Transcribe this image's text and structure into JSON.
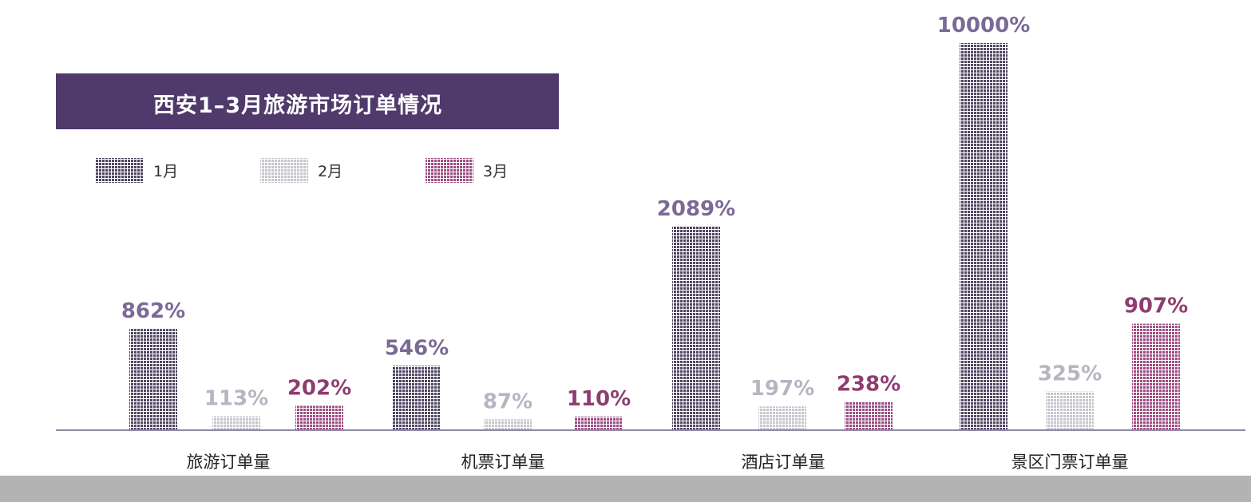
{
  "chart_data": {
    "type": "bar",
    "title": "西安1–3月旅游市场订单情况",
    "categories": [
      "旅游订单量",
      "机票订单量",
      "酒店订单量",
      "景区门票订单量"
    ],
    "series": [
      {
        "name": "1月",
        "color": "#4f4662",
        "label_color": "#7a6a96",
        "values": [
          862,
          546,
          2089,
          10000
        ],
        "labels": [
          "862%",
          "546%",
          "2089%",
          "10000%"
        ]
      },
      {
        "name": "2月",
        "color": "#c7c3cc",
        "label_color": "#b9b4c2",
        "values": [
          113,
          87,
          197,
          325
        ],
        "labels": [
          "113%",
          "87%",
          "197%",
          "325%"
        ]
      },
      {
        "name": "3月",
        "color": "#9c4f84",
        "label_color": "#8f3d70",
        "values": [
          202,
          110,
          238,
          907
        ],
        "labels": [
          "202%",
          "110%",
          "238%",
          "907%"
        ]
      }
    ],
    "legend_position": "top-left",
    "grid": false
  }
}
